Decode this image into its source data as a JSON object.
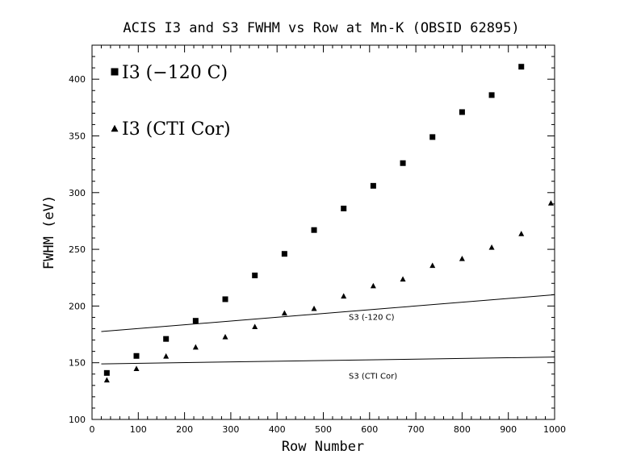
{
  "chart_data": {
    "type": "scatter",
    "title": "ACIS I3 and S3 FWHM vs Row at Mn-K (OBSID 62895)",
    "xlabel": "Row Number",
    "ylabel": "FWHM (eV)",
    "xlim": [
      0,
      1000
    ],
    "ylim": [
      100,
      430
    ],
    "x_ticks": [
      0,
      100,
      200,
      300,
      400,
      500,
      600,
      700,
      800,
      900,
      1000
    ],
    "y_ticks": [
      100,
      150,
      200,
      250,
      300,
      350,
      400
    ],
    "grid": false,
    "legend_position": "top-left",
    "series": [
      {
        "name": "I3 (−120 C)",
        "marker": "square",
        "color": "#000000",
        "x": [
          32,
          96,
          160,
          224,
          288,
          352,
          416,
          480,
          544,
          608,
          672,
          736,
          800,
          864,
          928
        ],
        "y": [
          141,
          156,
          171,
          187,
          206,
          227,
          246,
          267,
          286,
          306,
          326,
          349,
          371,
          386,
          411
        ]
      },
      {
        "name": "I3 (CTI Cor)",
        "marker": "triangle",
        "color": "#000000",
        "x": [
          32,
          96,
          160,
          224,
          288,
          352,
          416,
          480,
          544,
          608,
          672,
          736,
          800,
          864,
          928,
          992
        ],
        "y": [
          135,
          145,
          156,
          164,
          173,
          182,
          194,
          198,
          209,
          218,
          224,
          236,
          242,
          252,
          264,
          291
        ]
      }
    ],
    "lines": [
      {
        "label": "S3 (-120 C)",
        "x": [
          20,
          1000
        ],
        "y": [
          177.5,
          210
        ],
        "label_at": [
          555,
          188
        ]
      },
      {
        "label": "S3 (CTI Cor)",
        "x": [
          20,
          1000
        ],
        "y": [
          149,
          155
        ],
        "label_at": [
          555,
          136
        ]
      }
    ]
  }
}
